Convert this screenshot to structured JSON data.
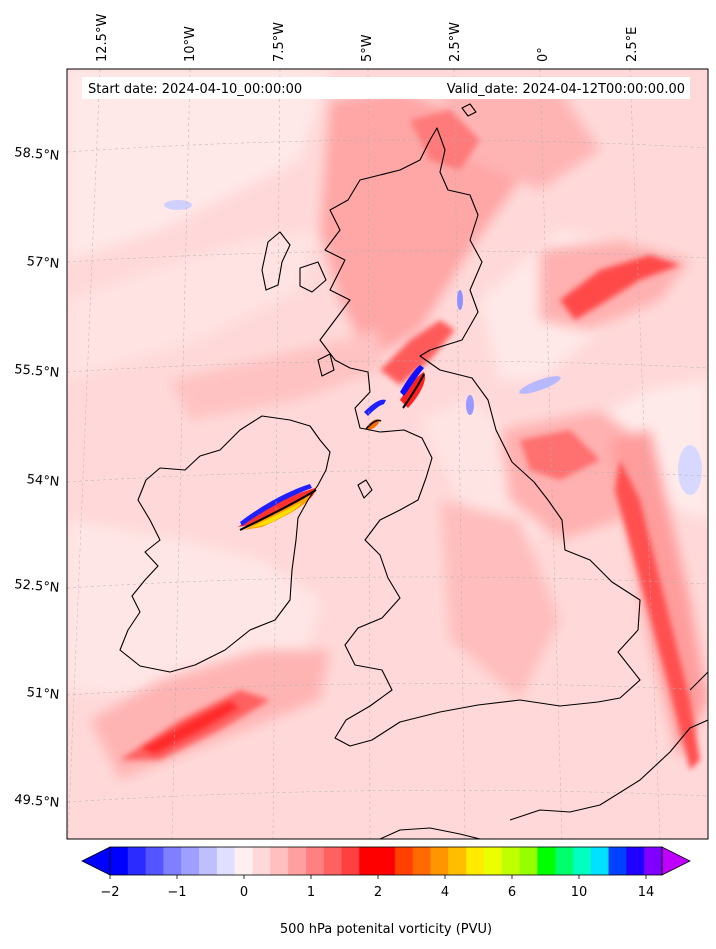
{
  "header": {
    "start_date": "Start date: 2024-04-10_00:00:00",
    "valid_date": "Valid_date: 2024-04-12T00:00:00.00"
  },
  "map": {
    "lon_labels": [
      "12.5°W",
      "10°W",
      "7.5°W",
      "5°W",
      "2.5°W",
      "0°",
      "2.5°E"
    ],
    "lat_labels": [
      "58.5°N",
      "57°N",
      "55.5°N",
      "54°N",
      "52.5°N",
      "51°N",
      "49.5°N"
    ],
    "background_color": "#ffd9d9",
    "coastline_color": "#000000"
  },
  "colorbar": {
    "label": "500 hPa potenital vorticity (PVU)",
    "tick_labels": [
      "−2",
      "−1",
      "0",
      "1",
      "2",
      "4",
      "6",
      "10",
      "14"
    ],
    "colors": [
      "#0000ff",
      "#2b2bff",
      "#5555ff",
      "#7f7fff",
      "#9f9fff",
      "#bfbfff",
      "#dfdfff",
      "#fff0f0",
      "#ffd9d9",
      "#ffbfbf",
      "#ffa0a0",
      "#ff8080",
      "#ff6060",
      "#ff4040",
      "#ff0000",
      "#ff0000",
      "#ff4000",
      "#ff6a00",
      "#ff9500",
      "#ffbf00",
      "#ffea00",
      "#eaff00",
      "#bfff00",
      "#95ff00",
      "#00ff00",
      "#00ff6a",
      "#00ffbf",
      "#00e0ff",
      "#0040ff",
      "#2000ff",
      "#8000ff"
    ],
    "extend_min_color": "#0000ff",
    "extend_max_color": "#c000ff"
  }
}
